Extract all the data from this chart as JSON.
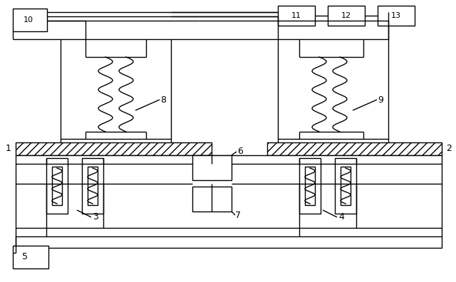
{
  "bg": "#ffffff",
  "lc": "#000000",
  "lw": 1.0
}
